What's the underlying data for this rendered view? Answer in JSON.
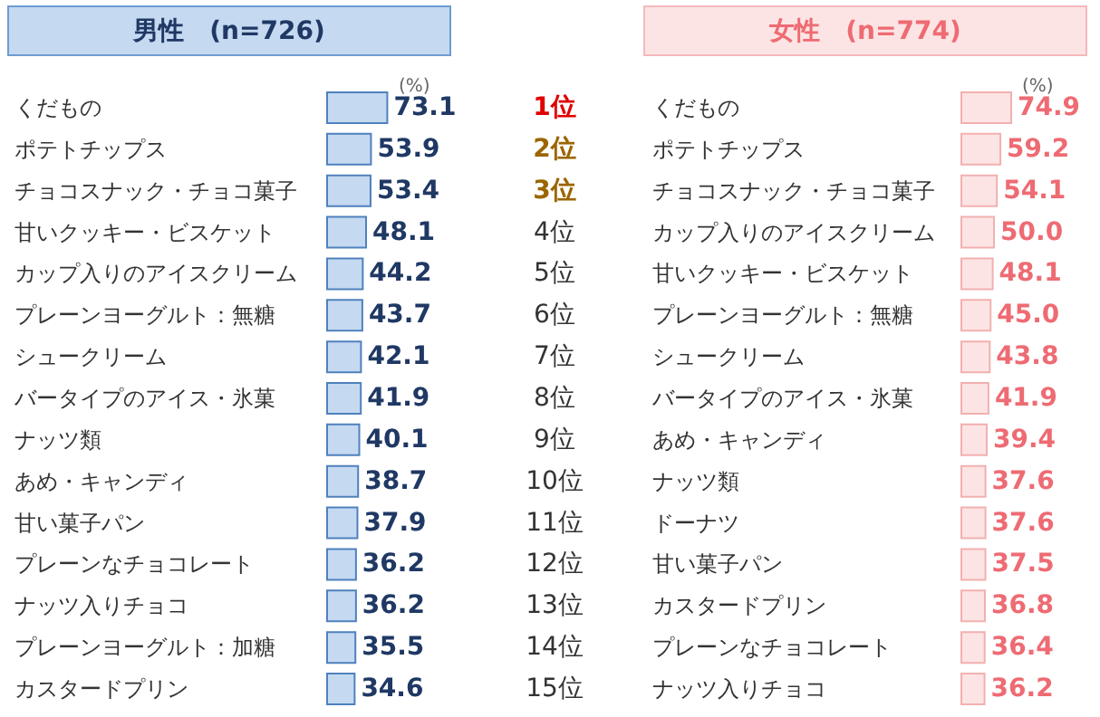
{
  "chart_data": [
    {
      "type": "bar",
      "orientation": "horizontal",
      "title": "男性　(n=726)",
      "xlabel": "(%)",
      "categories": [
        "くだもの",
        "ポテトチップス",
        "チョコスナック・チョコ菓子",
        "甘いクッキー・ビスケット",
        "カップ入りのアイスクリーム",
        "プレーンヨーグルト：無糖",
        "シュークリーム",
        "バータイプのアイス・氷菓",
        "ナッツ類",
        "あめ・キャンディ",
        "甘い菓子パン",
        "プレーンなチョコレート",
        "ナッツ入りチョコ",
        "プレーンヨーグルト：加糖",
        "カスタードプリン"
      ],
      "series": [
        {
          "color": "#c5d9f1",
          "values": [
            73.1,
            53.9,
            53.4,
            48.1,
            44.2,
            43.7,
            42.1,
            41.9,
            40.1,
            38.7,
            37.9,
            36.2,
            36.2,
            35.5,
            34.6
          ],
          "value_labels": [
            "73.1",
            "53.9",
            "53.4",
            "48.1",
            "44.2",
            "43.7",
            "42.1",
            "41.9",
            "40.1",
            "38.7",
            "37.9",
            "36.2",
            "36.2",
            "35.5",
            "34.6"
          ]
        }
      ],
      "annotations": [
        "1位",
        "2位",
        "3位",
        "4位",
        "5位",
        "6位",
        "7位",
        "8位",
        "9位",
        "10位",
        "11位",
        "12位",
        "13位",
        "14位",
        "15位"
      ]
    },
    {
      "type": "bar",
      "orientation": "horizontal",
      "title": "女性　(n=774)",
      "xlabel": "(%)",
      "categories": [
        "くだもの",
        "ポテトチップス",
        "チョコスナック・チョコ菓子",
        "カップ入りのアイスクリーム",
        "甘いクッキー・ビスケット",
        "プレーンヨーグルト：無糖",
        "シュークリーム",
        "バータイプのアイス・氷菓",
        "あめ・キャンディ",
        "ナッツ類",
        "ドーナツ",
        "甘い菓子パン",
        "カスタードプリン",
        "プレーンなチョコレート",
        "ナッツ入りチョコ"
      ],
      "series": [
        {
          "color": "#fde4e4",
          "values": [
            74.9,
            59.2,
            54.1,
            50.0,
            48.1,
            45.0,
            43.8,
            41.9,
            39.4,
            37.6,
            37.6,
            37.5,
            36.8,
            36.4,
            36.2
          ],
          "value_labels": [
            "74.9",
            "59.2",
            "54.1",
            "50.0",
            "48.1",
            "45.0",
            "43.8",
            "41.9",
            "39.4",
            "37.6",
            "37.6",
            "37.5",
            "36.8",
            "36.4",
            "36.2"
          ]
        }
      ]
    }
  ]
}
